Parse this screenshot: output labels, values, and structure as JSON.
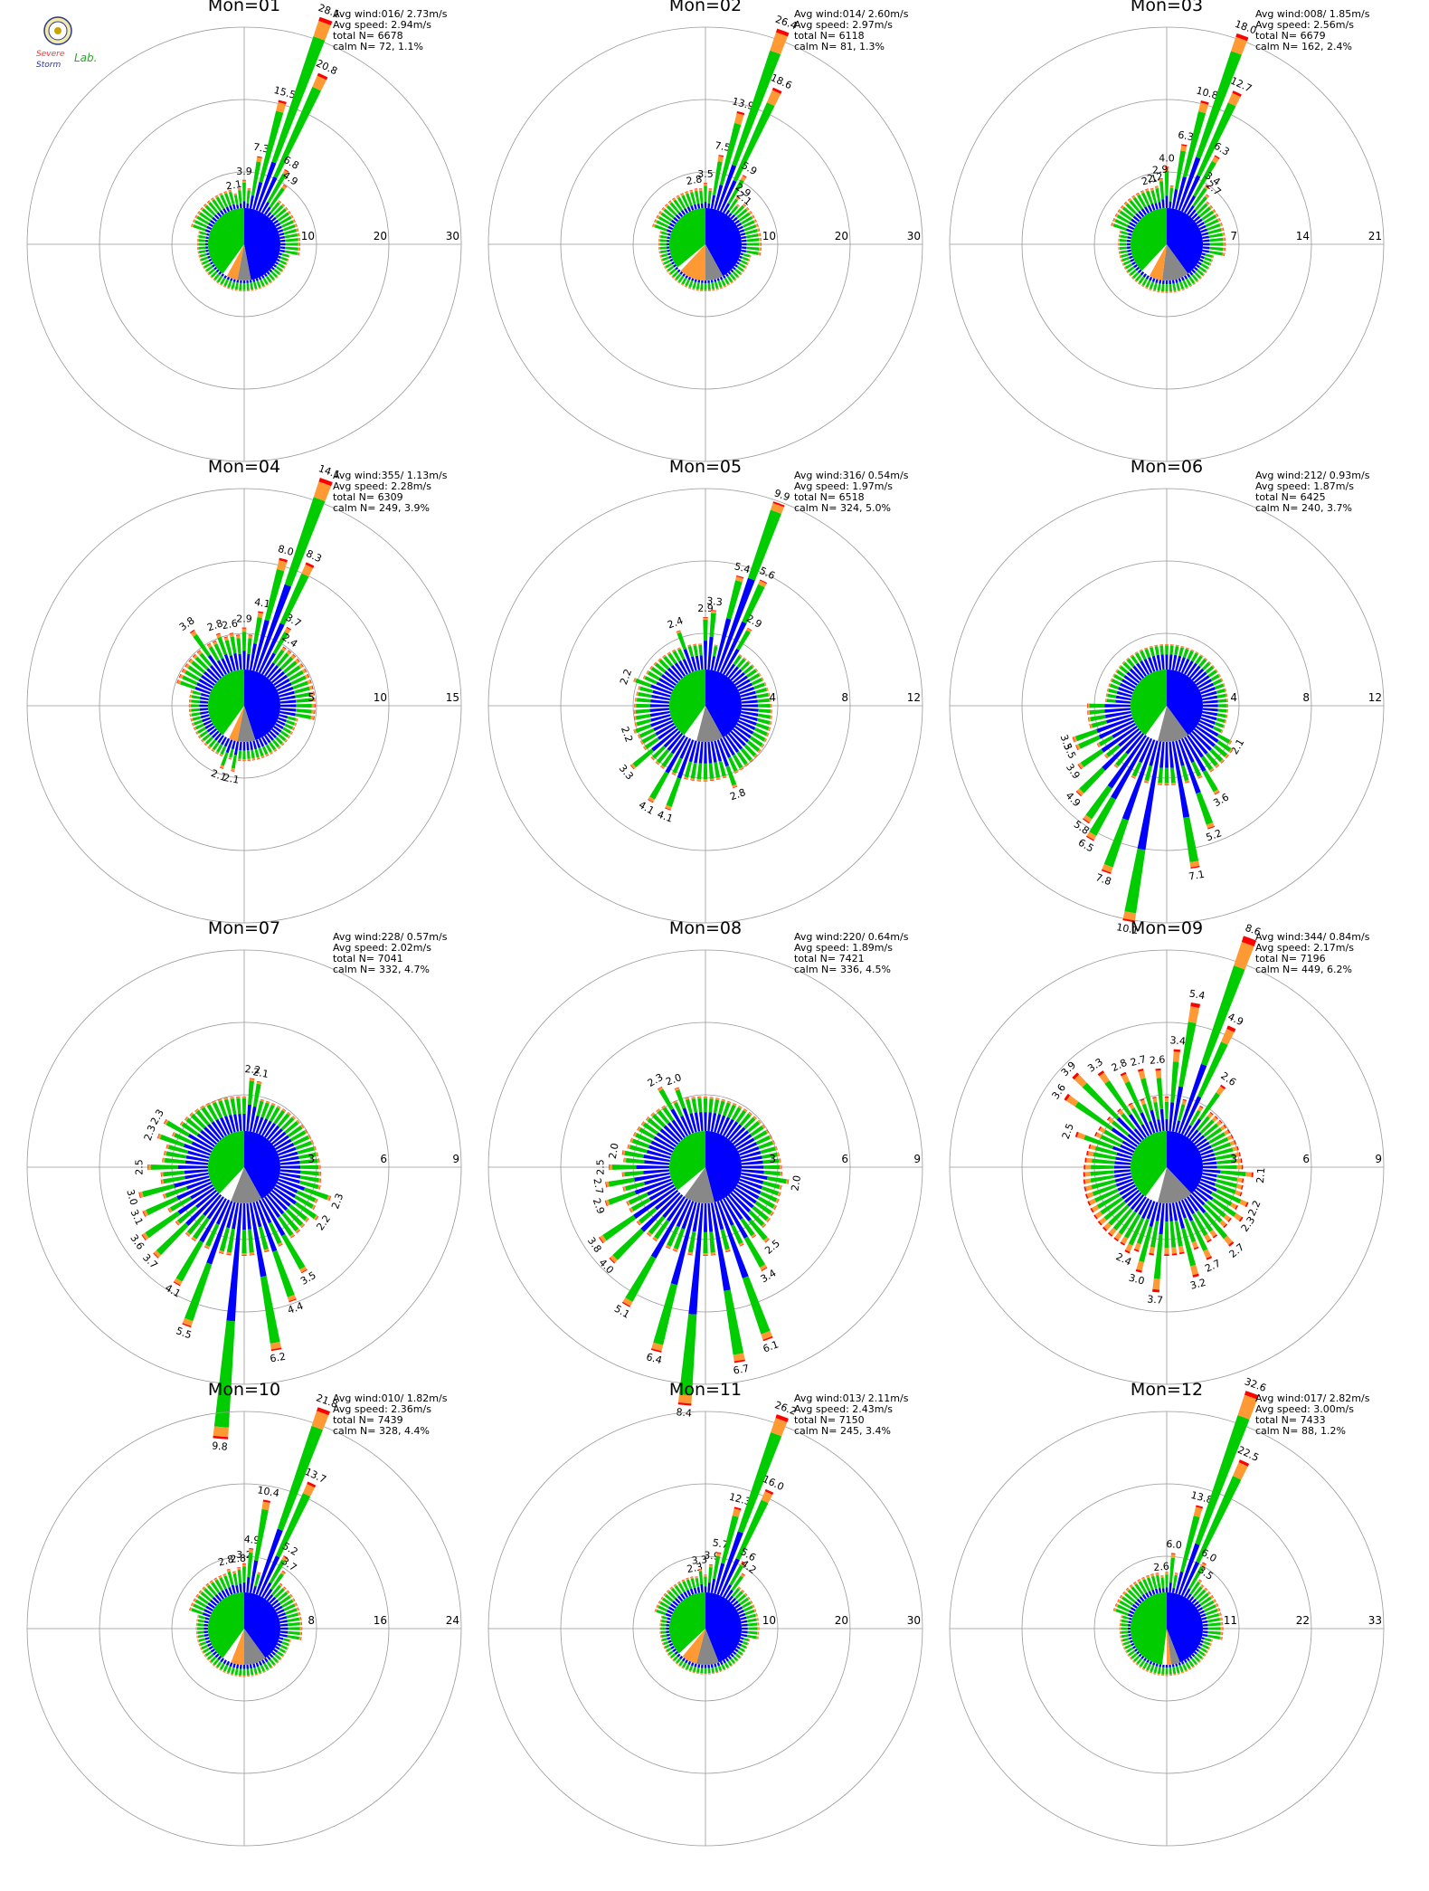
{
  "chart_data": [
    {
      "type": "polar-bar",
      "title": "Mon=01",
      "rings": [
        10,
        20,
        30
      ],
      "avg_wind": "016/ 2.73m/s",
      "avg_speed": "2.94m/s",
      "total_n": "6678",
      "calm_n": "72,   1.1%",
      "labeled_bars": [
        {
          "dir": 10,
          "value": 7.3
        },
        {
          "dir": 15,
          "value": 15.5
        },
        {
          "dir": 20,
          "value": 28.1
        },
        {
          "dir": 25,
          "value": 20.8
        },
        {
          "dir": 30,
          "value": 6.8
        },
        {
          "dir": 35,
          "value": 4.9
        },
        {
          "dir": 0,
          "value": 3.9
        },
        {
          "dir": 350,
          "value": 2.1
        }
      ],
      "pie": [
        {
          "color": "#0000ff",
          "frac": 0.47
        },
        {
          "color": "#888888",
          "frac": 0.06
        },
        {
          "color": "#ff9933",
          "frac": 0.05
        },
        {
          "color": "#ffffff",
          "frac": 0.02
        },
        {
          "color": "#00cc00",
          "frac": 0.4
        }
      ],
      "speed_shares": {
        "blue": 0.25,
        "green": 0.65,
        "orange": 0.08,
        "red": 0.02
      },
      "base_mode": "north",
      "base_level": 2.5
    },
    {
      "type": "polar-bar",
      "title": "Mon=02",
      "rings": [
        10,
        20,
        30
      ],
      "avg_wind": "014/ 2.60m/s",
      "avg_speed": "2.97m/s",
      "total_n": "6118",
      "calm_n": "81,   1.3%",
      "labeled_bars": [
        {
          "dir": 10,
          "value": 7.5
        },
        {
          "dir": 15,
          "value": 13.9
        },
        {
          "dir": 20,
          "value": 26.4
        },
        {
          "dir": 25,
          "value": 18.6
        },
        {
          "dir": 30,
          "value": 5.9
        },
        {
          "dir": 35,
          "value": 2.9
        },
        {
          "dir": 40,
          "value": 2.1
        },
        {
          "dir": 0,
          "value": 3.5
        },
        {
          "dir": 350,
          "value": 2.8
        }
      ],
      "pie": [
        {
          "color": "#0000ff",
          "frac": 0.42
        },
        {
          "color": "#888888",
          "frac": 0.08
        },
        {
          "color": "#ff9933",
          "frac": 0.12
        },
        {
          "color": "#ffffff",
          "frac": 0.02
        },
        {
          "color": "#00cc00",
          "frac": 0.36
        }
      ],
      "speed_shares": {
        "blue": 0.25,
        "green": 0.63,
        "orange": 0.1,
        "red": 0.02
      },
      "base_mode": "north",
      "base_level": 2.5
    },
    {
      "type": "polar-bar",
      "title": "Mon=03",
      "rings": [
        7,
        14,
        21
      ],
      "avg_wind": "008/ 1.85m/s",
      "avg_speed": "2.56m/s",
      "total_n": "6679",
      "calm_n": "162,   2.4%",
      "labeled_bars": [
        {
          "dir": 10,
          "value": 6.3
        },
        {
          "dir": 15,
          "value": 10.8
        },
        {
          "dir": 20,
          "value": 18.0
        },
        {
          "dir": 25,
          "value": 12.7
        },
        {
          "dir": 30,
          "value": 6.3
        },
        {
          "dir": 35,
          "value": 3.4
        },
        {
          "dir": 40,
          "value": 2.7
        },
        {
          "dir": 0,
          "value": 4.0
        },
        {
          "dir": 355,
          "value": 2.9
        },
        {
          "dir": 350,
          "value": 2.2
        },
        {
          "dir": 345,
          "value": 2.1
        }
      ],
      "pie": [
        {
          "color": "#0000ff",
          "frac": 0.4
        },
        {
          "color": "#888888",
          "frac": 0.12
        },
        {
          "color": "#ff9933",
          "frac": 0.06
        },
        {
          "color": "#ffffff",
          "frac": 0.04
        },
        {
          "color": "#00cc00",
          "frac": 0.38
        }
      ],
      "speed_shares": {
        "blue": 0.3,
        "green": 0.6,
        "orange": 0.08,
        "red": 0.02
      },
      "base_mode": "north",
      "base_level": 2.0
    },
    {
      "type": "polar-bar",
      "title": "Mon=04",
      "rings": [
        5,
        10,
        15
      ],
      "avg_wind": "355/ 1.13m/s",
      "avg_speed": "2.28m/s",
      "total_n": "6309",
      "calm_n": "249,   3.9%",
      "labeled_bars": [
        {
          "dir": 10,
          "value": 4.1
        },
        {
          "dir": 15,
          "value": 8.0
        },
        {
          "dir": 20,
          "value": 14.1
        },
        {
          "dir": 25,
          "value": 8.3
        },
        {
          "dir": 30,
          "value": 3.7
        },
        {
          "dir": 35,
          "value": 2.4
        },
        {
          "dir": 0,
          "value": 2.9
        },
        {
          "dir": 350,
          "value": 2.6
        },
        {
          "dir": 340,
          "value": 2.8
        },
        {
          "dir": 325,
          "value": 3.8
        },
        {
          "dir": 200,
          "value": 2.1
        },
        {
          "dir": 190,
          "value": 2.1
        }
      ],
      "pie": [
        {
          "color": "#0000ff",
          "frac": 0.45
        },
        {
          "color": "#888888",
          "frac": 0.08
        },
        {
          "color": "#ff9933",
          "frac": 0.04
        },
        {
          "color": "#ffffff",
          "frac": 0.03
        },
        {
          "color": "#00cc00",
          "frac": 0.4
        }
      ],
      "speed_shares": {
        "blue": 0.45,
        "green": 0.45,
        "orange": 0.08,
        "red": 0.02
      },
      "base_mode": "north",
      "base_level": 2.2
    },
    {
      "type": "polar-bar",
      "title": "Mon=05",
      "rings": [
        4,
        8,
        12
      ],
      "avg_wind": "316/ 0.54m/s",
      "avg_speed": "1.97m/s",
      "total_n": "6518",
      "calm_n": "324,   5.0%",
      "labeled_bars": [
        {
          "dir": 15,
          "value": 5.4
        },
        {
          "dir": 20,
          "value": 9.9
        },
        {
          "dir": 25,
          "value": 5.6
        },
        {
          "dir": 30,
          "value": 2.9
        },
        {
          "dir": 5,
          "value": 3.3
        },
        {
          "dir": 0,
          "value": 2.9
        },
        {
          "dir": 340,
          "value": 2.4
        },
        {
          "dir": 290,
          "value": 2.2
        },
        {
          "dir": 250,
          "value": 2.2
        },
        {
          "dir": 230,
          "value": 3.3
        },
        {
          "dir": 210,
          "value": 4.1
        },
        {
          "dir": 200,
          "value": 4.1
        },
        {
          "dir": 160,
          "value": 2.8
        }
      ],
      "pie": [
        {
          "color": "#0000ff",
          "frac": 0.42
        },
        {
          "color": "#888888",
          "frac": 0.12
        },
        {
          "color": "#ffffff",
          "frac": 0.06
        },
        {
          "color": "#00cc00",
          "frac": 0.4
        }
      ],
      "speed_shares": {
        "blue": 0.55,
        "green": 0.4,
        "orange": 0.04,
        "red": 0.01
      },
      "base_mode": "all",
      "base_level": 2.0
    },
    {
      "type": "polar-bar",
      "title": "Mon=06",
      "rings": [
        4,
        8,
        12
      ],
      "avg_wind": "212/ 0.93m/s",
      "avg_speed": "1.87m/s",
      "total_n": "6425",
      "calm_n": "240,   3.7%",
      "labeled_bars": [
        {
          "dir": 190,
          "value": 10.1
        },
        {
          "dir": 200,
          "value": 7.8
        },
        {
          "dir": 170,
          "value": 7.1
        },
        {
          "dir": 210,
          "value": 6.5
        },
        {
          "dir": 215,
          "value": 5.8
        },
        {
          "dir": 160,
          "value": 5.2
        },
        {
          "dir": 225,
          "value": 4.9
        },
        {
          "dir": 235,
          "value": 3.9
        },
        {
          "dir": 245,
          "value": 3.5
        },
        {
          "dir": 250,
          "value": 3.5
        },
        {
          "dir": 150,
          "value": 3.6
        },
        {
          "dir": 120,
          "value": 2.1
        }
      ],
      "pie": [
        {
          "color": "#0000ff",
          "frac": 0.4
        },
        {
          "color": "#888888",
          "frac": 0.14
        },
        {
          "color": "#ffffff",
          "frac": 0.06
        },
        {
          "color": "#00cc00",
          "frac": 0.4
        }
      ],
      "speed_shares": {
        "blue": 0.6,
        "green": 0.35,
        "orange": 0.04,
        "red": 0.01
      },
      "base_mode": "south",
      "base_level": 2.0
    },
    {
      "type": "polar-bar",
      "title": "Mon=07",
      "rings": [
        3,
        6,
        9
      ],
      "avg_wind": "228/ 0.57m/s",
      "avg_speed": "2.02m/s",
      "total_n": "7041",
      "calm_n": "332,   4.7%",
      "labeled_bars": [
        {
          "dir": 185,
          "value": 9.8
        },
        {
          "dir": 200,
          "value": 5.5
        },
        {
          "dir": 170,
          "value": 6.2
        },
        {
          "dir": 160,
          "value": 4.4
        },
        {
          "dir": 210,
          "value": 4.1
        },
        {
          "dir": 150,
          "value": 3.5
        },
        {
          "dir": 225,
          "value": 3.7
        },
        {
          "dir": 235,
          "value": 3.6
        },
        {
          "dir": 245,
          "value": 3.1
        },
        {
          "dir": 255,
          "value": 3.0
        },
        {
          "dir": 270,
          "value": 2.5
        },
        {
          "dir": 290,
          "value": 2.3
        },
        {
          "dir": 300,
          "value": 2.3
        },
        {
          "dir": 5,
          "value": 2.2
        },
        {
          "dir": 10,
          "value": 2.1
        },
        {
          "dir": 110,
          "value": 2.3
        },
        {
          "dir": 125,
          "value": 2.2
        }
      ],
      "pie": [
        {
          "color": "#0000ff",
          "frac": 0.42
        },
        {
          "color": "#888888",
          "frac": 0.14
        },
        {
          "color": "#ffffff",
          "frac": 0.06
        },
        {
          "color": "#00cc00",
          "frac": 0.38
        }
      ],
      "speed_shares": {
        "blue": 0.5,
        "green": 0.45,
        "orange": 0.04,
        "red": 0.01
      },
      "base_mode": "all",
      "base_level": 2.0
    },
    {
      "type": "polar-bar",
      "title": "Mon=08",
      "rings": [
        3,
        6,
        9
      ],
      "avg_wind": "220/ 0.64m/s",
      "avg_speed": "1.89m/s",
      "total_n": "7421",
      "calm_n": "336,   4.5%",
      "labeled_bars": [
        {
          "dir": 185,
          "value": 8.4
        },
        {
          "dir": 170,
          "value": 6.7
        },
        {
          "dir": 160,
          "value": 6.1
        },
        {
          "dir": 195,
          "value": 6.4
        },
        {
          "dir": 210,
          "value": 5.1
        },
        {
          "dir": 150,
          "value": 3.4
        },
        {
          "dir": 225,
          "value": 4.0
        },
        {
          "dir": 235,
          "value": 3.8
        },
        {
          "dir": 140,
          "value": 2.5
        },
        {
          "dir": 250,
          "value": 2.9
        },
        {
          "dir": 260,
          "value": 2.7
        },
        {
          "dir": 270,
          "value": 2.5
        },
        {
          "dir": 280,
          "value": 2.0
        },
        {
          "dir": 330,
          "value": 2.3
        },
        {
          "dir": 340,
          "value": 2.0
        },
        {
          "dir": 100,
          "value": 2.0
        }
      ],
      "pie": [
        {
          "color": "#0000ff",
          "frac": 0.46
        },
        {
          "color": "#888888",
          "frac": 0.14
        },
        {
          "color": "#ffffff",
          "frac": 0.04
        },
        {
          "color": "#00cc00",
          "frac": 0.36
        }
      ],
      "speed_shares": {
        "blue": 0.55,
        "green": 0.4,
        "orange": 0.04,
        "red": 0.01
      },
      "base_mode": "all",
      "base_level": 2.0
    },
    {
      "type": "polar-bar",
      "title": "Mon=09",
      "rings": [
        3,
        6,
        9
      ],
      "avg_wind": "344/ 0.84m/s",
      "avg_speed": "2.17m/s",
      "total_n": "7196",
      "calm_n": "449,   6.2%",
      "labeled_bars": [
        {
          "dir": 20,
          "value": 8.6
        },
        {
          "dir": 10,
          "value": 5.4
        },
        {
          "dir": 5,
          "value": 3.4
        },
        {
          "dir": 25,
          "value": 4.9
        },
        {
          "dir": 35,
          "value": 2.6
        },
        {
          "dir": 355,
          "value": 2.6
        },
        {
          "dir": 345,
          "value": 2.7
        },
        {
          "dir": 335,
          "value": 2.8
        },
        {
          "dir": 325,
          "value": 3.3
        },
        {
          "dir": 315,
          "value": 3.9
        },
        {
          "dir": 305,
          "value": 3.6
        },
        {
          "dir": 290,
          "value": 2.5
        },
        {
          "dir": 95,
          "value": 2.1
        },
        {
          "dir": 115,
          "value": 2.2
        },
        {
          "dir": 125,
          "value": 2.3
        },
        {
          "dir": 140,
          "value": 2.7
        },
        {
          "dir": 155,
          "value": 2.7
        },
        {
          "dir": 165,
          "value": 3.2
        },
        {
          "dir": 185,
          "value": 3.7
        },
        {
          "dir": 195,
          "value": 3.0
        },
        {
          "dir": 205,
          "value": 2.4
        }
      ],
      "pie": [
        {
          "color": "#0000ff",
          "frac": 0.38
        },
        {
          "color": "#888888",
          "frac": 0.16
        },
        {
          "color": "#ffffff",
          "frac": 0.06
        },
        {
          "color": "#00cc00",
          "frac": 0.4
        }
      ],
      "speed_shares": {
        "blue": 0.35,
        "green": 0.5,
        "orange": 0.12,
        "red": 0.03
      },
      "base_mode": "all",
      "base_level": 2.0
    },
    {
      "type": "polar-bar",
      "title": "Mon=10",
      "rings": [
        8,
        16,
        24
      ],
      "avg_wind": "010/ 1.82m/s",
      "avg_speed": "2.36m/s",
      "total_n": "7439",
      "calm_n": "328,   4.4%",
      "labeled_bars": [
        {
          "dir": 10,
          "value": 10.4
        },
        {
          "dir": 20,
          "value": 21.8
        },
        {
          "dir": 25,
          "value": 13.7
        },
        {
          "dir": 30,
          "value": 5.2
        },
        {
          "dir": 35,
          "value": 3.7
        },
        {
          "dir": 5,
          "value": 4.9
        },
        {
          "dir": 0,
          "value": 3.2
        },
        {
          "dir": 355,
          "value": 2.8
        },
        {
          "dir": 345,
          "value": 2.8
        }
      ],
      "pie": [
        {
          "color": "#0000ff",
          "frac": 0.4
        },
        {
          "color": "#888888",
          "frac": 0.1
        },
        {
          "color": "#ff9933",
          "frac": 0.06
        },
        {
          "color": "#ffffff",
          "frac": 0.04
        },
        {
          "color": "#00cc00",
          "frac": 0.4
        }
      ],
      "speed_shares": {
        "blue": 0.35,
        "green": 0.55,
        "orange": 0.08,
        "red": 0.02
      },
      "base_mode": "north",
      "base_level": 2.2
    },
    {
      "type": "polar-bar",
      "title": "Mon=11",
      "rings": [
        10,
        20,
        30
      ],
      "avg_wind": "013/ 2.11m/s",
      "avg_speed": "2.43m/s",
      "total_n": "7150",
      "calm_n": "245,   3.4%",
      "labeled_bars": [
        {
          "dir": 15,
          "value": 12.3
        },
        {
          "dir": 20,
          "value": 26.2
        },
        {
          "dir": 25,
          "value": 16.0
        },
        {
          "dir": 30,
          "value": 5.6
        },
        {
          "dir": 35,
          "value": 4.2
        },
        {
          "dir": 10,
          "value": 5.7
        },
        {
          "dir": 5,
          "value": 3.9
        },
        {
          "dir": 355,
          "value": 3.3
        },
        {
          "dir": 350,
          "value": 2.3
        }
      ],
      "pie": [
        {
          "color": "#0000ff",
          "frac": 0.44
        },
        {
          "color": "#888888",
          "frac": 0.1
        },
        {
          "color": "#ff9933",
          "frac": 0.07
        },
        {
          "color": "#ffffff",
          "frac": 0.02
        },
        {
          "color": "#00cc00",
          "frac": 0.37
        }
      ],
      "speed_shares": {
        "blue": 0.35,
        "green": 0.55,
        "orange": 0.08,
        "red": 0.02
      },
      "base_mode": "north",
      "base_level": 2.2
    },
    {
      "type": "polar-bar",
      "title": "Mon=12",
      "rings": [
        11,
        22,
        33
      ],
      "avg_wind": "017/ 2.82m/s",
      "avg_speed": "3.00m/s",
      "total_n": "7433",
      "calm_n": "88,   1.2%",
      "labeled_bars": [
        {
          "dir": 15,
          "value": 13.8
        },
        {
          "dir": 20,
          "value": 32.6
        },
        {
          "dir": 25,
          "value": 22.5
        },
        {
          "dir": 30,
          "value": 6.0
        },
        {
          "dir": 35,
          "value": 3.5
        },
        {
          "dir": 5,
          "value": 6.0
        },
        {
          "dir": 355,
          "value": 2.6
        }
      ],
      "pie": [
        {
          "color": "#0000ff",
          "frac": 0.44
        },
        {
          "color": "#888888",
          "frac": 0.04
        },
        {
          "color": "#ff9933",
          "frac": 0.02
        },
        {
          "color": "#ffffff",
          "frac": 0.02
        },
        {
          "color": "#00cc00",
          "frac": 0.48
        }
      ],
      "speed_shares": {
        "blue": 0.25,
        "green": 0.63,
        "orange": 0.1,
        "red": 0.02
      },
      "base_mode": "north",
      "base_level": 2.8
    }
  ],
  "labels": {
    "avg_wind": "Avg wind:",
    "avg_speed": "Avg speed:",
    "total": "total N=",
    "calm": "calm N="
  },
  "logo": {
    "word1": "Severe",
    "word2": "Storm",
    "word3": "Lab."
  }
}
